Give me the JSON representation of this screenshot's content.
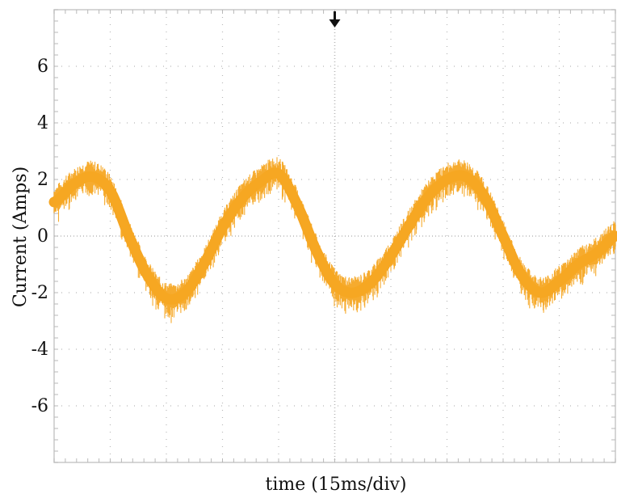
{
  "chart_data": {
    "type": "line",
    "title": "",
    "xlabel": "time (15ms/div)",
    "ylabel": "Current (Amps)",
    "ylim": [
      -8,
      8
    ],
    "xlim": [
      0,
      150
    ],
    "x_divisions": 10,
    "y_ticks": [
      6,
      4,
      2,
      0,
      -2,
      -4,
      -6
    ],
    "grid": true,
    "background": "#ffffff",
    "grid_color": "#b8b8b8",
    "trigger_marker": "down-arrow",
    "series": [
      {
        "color": "#f5a623",
        "x": [
          0,
          5,
          10,
          15,
          20,
          25,
          30,
          35,
          40,
          45,
          50,
          55,
          60,
          65,
          70,
          75,
          80,
          85,
          90,
          95,
          100,
          105,
          110,
          115,
          120,
          125,
          130,
          135,
          140,
          145,
          150
        ],
        "y": [
          1.2,
          1.8,
          2.1,
          1.6,
          0.0,
          -1.4,
          -2.2,
          -2.0,
          -1.0,
          0.3,
          1.3,
          1.9,
          2.2,
          1.1,
          -0.5,
          -1.7,
          -2.0,
          -1.6,
          -0.7,
          0.4,
          1.4,
          2.0,
          2.1,
          1.4,
          0.0,
          -1.4,
          -2.0,
          -1.6,
          -1.0,
          -0.6,
          0.0
        ]
      }
    ]
  }
}
